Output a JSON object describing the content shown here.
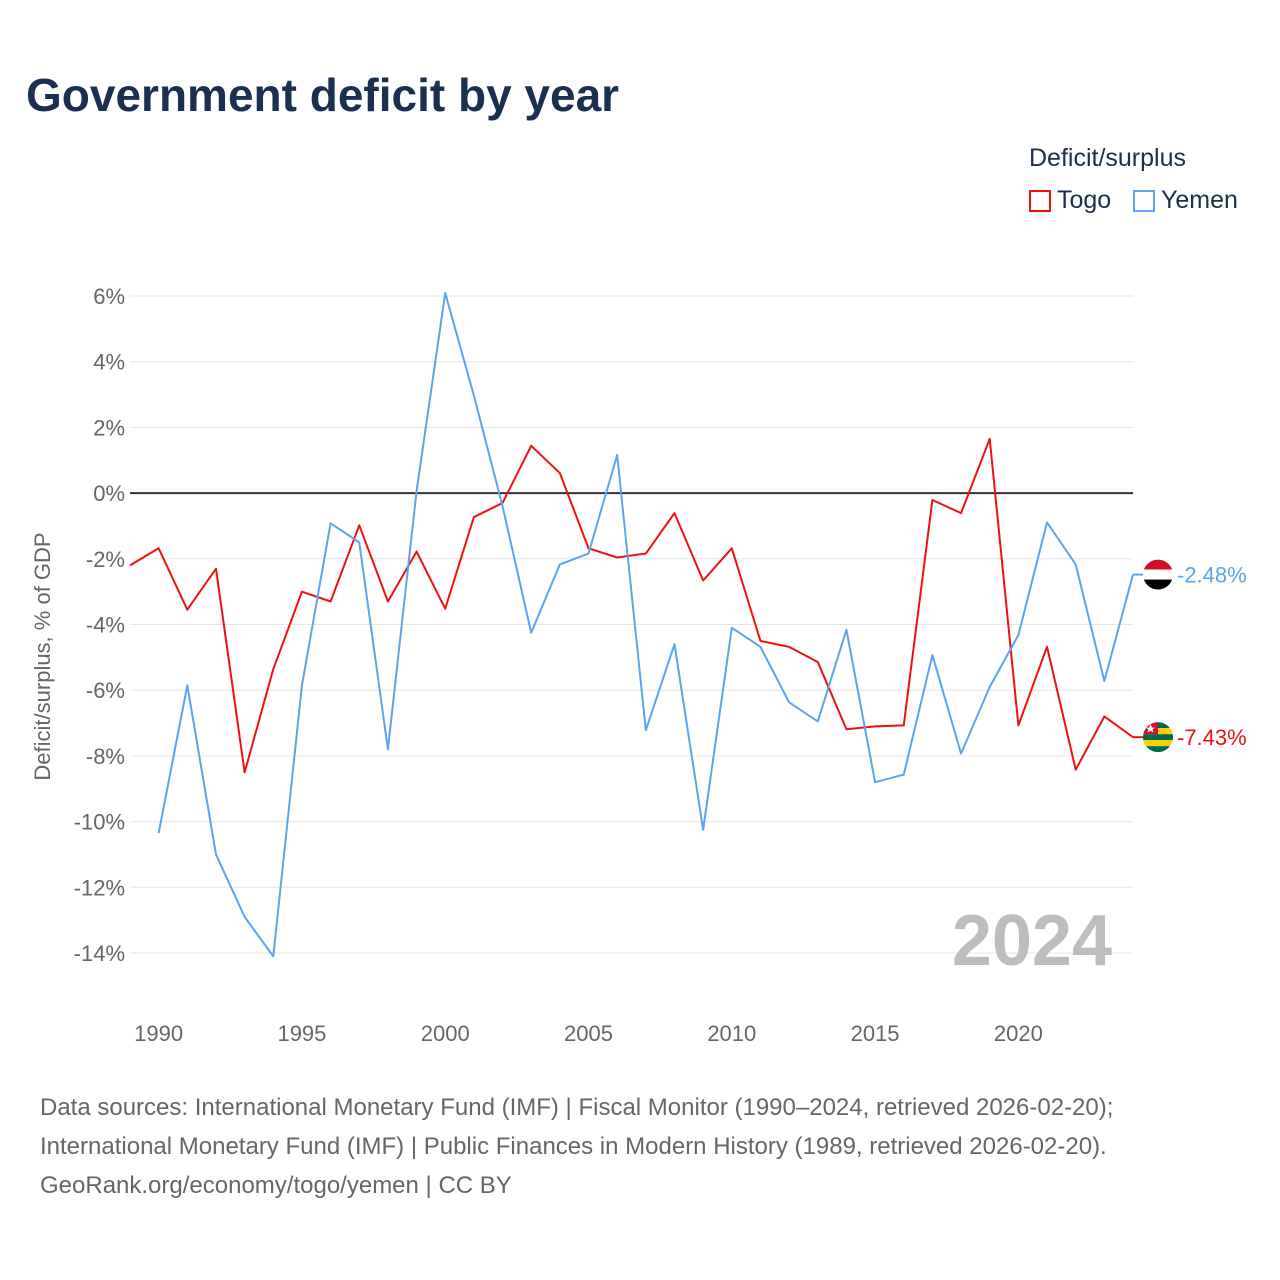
{
  "title": "Government deficit by year",
  "legend": {
    "title": "Deficit/surplus",
    "items": [
      "Togo",
      "Yemen"
    ]
  },
  "source": [
    "Data sources: International Monetary Fund (IMF) | Fiscal Monitor (1990–2024, retrieved 2026-02-20);",
    "International Monetary Fund (IMF) | Public Finances in Modern History (1989, retrieved 2026-02-20).",
    "GeoRank.org/economy/togo/yemen | CC BY"
  ],
  "chart_data": {
    "type": "line",
    "title": "Government deficit by year",
    "ylabel": "Deficit/surplus, % of GDP",
    "xlabel": "",
    "ylim": [
      -14,
      6
    ],
    "xlim": [
      1989,
      2024
    ],
    "yticks": [
      6,
      4,
      2,
      0,
      -2,
      -4,
      -6,
      -8,
      -10,
      -12,
      -14
    ],
    "ytick_labels": [
      "6%",
      "4%",
      "2%",
      "0%",
      "-2%",
      "-4%",
      "-6%",
      "-8%",
      "-10%",
      "-12%",
      "-14%"
    ],
    "xticks": [
      1990,
      1995,
      2000,
      2005,
      2010,
      2015,
      2020
    ],
    "year_label": "2024",
    "grid": true,
    "legend_position": "top-right",
    "series": [
      {
        "name": "Togo",
        "color": "#ee1111",
        "end_label": "-7.43%",
        "flag": "togo",
        "x": [
          1989,
          1990,
          1991,
          1992,
          1993,
          1994,
          1995,
          1996,
          1997,
          1998,
          1999,
          2000,
          2001,
          2002,
          2003,
          2004,
          2005,
          2006,
          2007,
          2008,
          2009,
          2010,
          2011,
          2012,
          2013,
          2014,
          2015,
          2016,
          2017,
          2018,
          2019,
          2020,
          2021,
          2022,
          2023,
          2024
        ],
        "values": [
          -2.2,
          -1.68,
          -3.55,
          -2.3,
          -8.5,
          -5.36,
          -3.0,
          -3.3,
          -0.98,
          -3.3,
          -1.78,
          -3.52,
          -0.73,
          -0.3,
          1.44,
          0.61,
          -1.68,
          -1.96,
          -1.84,
          -0.61,
          -2.66,
          -1.68,
          -4.5,
          -4.68,
          -5.14,
          -7.19,
          -7.1,
          -7.07,
          -0.21,
          -0.61,
          1.65,
          -7.07,
          -4.68,
          -8.42,
          -6.8,
          -7.43
        ]
      },
      {
        "name": "Yemen",
        "color": "#5aa5ee",
        "end_label": "-2.48%",
        "flag": "yemen",
        "x": [
          1990,
          1991,
          1992,
          1993,
          1994,
          1995,
          1996,
          1997,
          1998,
          1999,
          2000,
          2001,
          2002,
          2003,
          2004,
          2005,
          2006,
          2007,
          2008,
          2009,
          2010,
          2011,
          2012,
          2013,
          2014,
          2015,
          2016,
          2017,
          2018,
          2019,
          2020,
          2021,
          2022,
          2023,
          2024
        ],
        "values": [
          -10.35,
          -5.85,
          -11.0,
          -12.9,
          -14.1,
          -5.85,
          -0.92,
          -1.5,
          -7.8,
          0.06,
          6.09,
          2.97,
          -0.4,
          -4.25,
          -2.17,
          -1.84,
          1.16,
          -7.22,
          -4.6,
          -10.25,
          -4.1,
          -4.68,
          -6.37,
          -6.95,
          -4.16,
          -8.8,
          -8.57,
          -4.93,
          -7.93,
          -5.9,
          -4.32,
          -0.89,
          -2.17,
          -5.72,
          -2.48
        ]
      }
    ]
  }
}
